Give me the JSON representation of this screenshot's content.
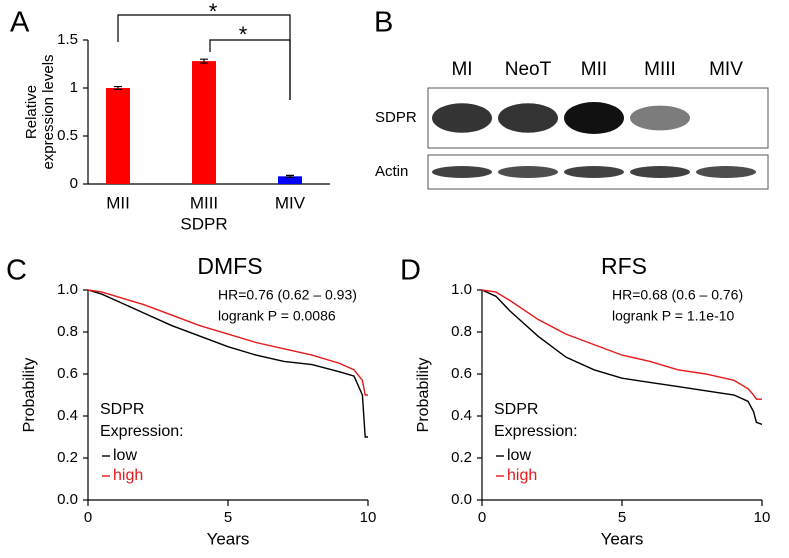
{
  "chart_data": [
    {
      "type": "bar",
      "panel": "A",
      "categories": [
        "MII",
        "MIII",
        "MIV"
      ],
      "xlabel": "SDPR",
      "ylabel": [
        "Relative",
        "expression levels"
      ],
      "values": [
        1.0,
        1.28,
        0.08
      ],
      "errors": [
        0.015,
        0.02,
        0.01
      ],
      "colors": [
        "#ff0000",
        "#ff0000",
        "#0000ff"
      ],
      "ylim": [
        0,
        1.5
      ],
      "yticks": [
        0,
        0.5,
        1,
        1.5
      ],
      "annotations": [
        "*",
        "*"
      ]
    },
    {
      "type": "blot",
      "panel": "B",
      "categories": [
        "MI",
        "NeoT",
        "MII",
        "MIII",
        "MIV"
      ],
      "rows": [
        {
          "name": "SDPR",
          "values": [
            0.85,
            0.85,
            1,
            0.55,
            0
          ]
        },
        {
          "name": "Actin",
          "values": [
            0.8,
            0.75,
            0.8,
            0.8,
            0.75
          ]
        }
      ]
    },
    {
      "type": "km",
      "panel": "C",
      "title": "DMFS",
      "xlabel": "Years",
      "ylabel": "Probability",
      "annotations": [
        "HR=0.76 (0.62 – 0.93)",
        "logrank P = 0.0086"
      ],
      "legend_title": [
        "SDPR",
        "Expression:"
      ],
      "x": [
        0,
        0.5,
        1,
        2,
        3,
        4,
        5,
        6,
        7,
        8,
        9,
        9.5,
        9.8,
        9.9,
        10
      ],
      "series": [
        {
          "name": "low",
          "color": "#000000",
          "values": [
            1,
            0.98,
            0.95,
            0.89,
            0.83,
            0.78,
            0.73,
            0.69,
            0.66,
            0.645,
            0.61,
            0.59,
            0.5,
            0.3,
            0.3
          ]
        },
        {
          "name": "high",
          "color": "#e41a1c",
          "values": [
            1,
            0.99,
            0.97,
            0.93,
            0.88,
            0.83,
            0.79,
            0.75,
            0.72,
            0.69,
            0.65,
            0.62,
            0.57,
            0.5,
            0.5
          ]
        }
      ],
      "xlim": [
        0,
        10
      ],
      "xticks": [
        0,
        5,
        10
      ],
      "ylim": [
        0,
        1
      ],
      "yticks": [
        {
          "value": 0,
          "label": "0.0"
        },
        {
          "value": 0.2,
          "label": "0.2"
        },
        {
          "value": 0.4,
          "label": "0.4"
        },
        {
          "value": 0.6,
          "label": "0.6"
        },
        {
          "value": 0.8,
          "label": "0.8"
        },
        {
          "value": 1,
          "label": "1.0"
        }
      ]
    },
    {
      "type": "km",
      "panel": "D",
      "title": "RFS",
      "xlabel": "Years",
      "ylabel": "Probability",
      "annotations": [
        "HR=0.68 (0.6 – 0.76)",
        "logrank P = 1.1e-10"
      ],
      "legend_title": [
        "SDPR",
        "Expression:"
      ],
      "x": [
        0,
        0.5,
        1,
        2,
        3,
        4,
        5,
        6,
        7,
        8,
        9,
        9.5,
        9.7,
        9.8,
        10
      ],
      "series": [
        {
          "name": "low",
          "color": "#000000",
          "values": [
            1,
            0.97,
            0.9,
            0.78,
            0.68,
            0.62,
            0.58,
            0.56,
            0.54,
            0.52,
            0.5,
            0.47,
            0.42,
            0.37,
            0.36
          ]
        },
        {
          "name": "high",
          "color": "#e41a1c",
          "values": [
            1,
            0.99,
            0.95,
            0.86,
            0.79,
            0.74,
            0.69,
            0.66,
            0.62,
            0.6,
            0.57,
            0.53,
            0.5,
            0.48,
            0.48
          ]
        }
      ],
      "xlim": [
        0,
        10
      ],
      "xticks": [
        0,
        5,
        10
      ],
      "ylim": [
        0,
        1
      ],
      "yticks": [
        {
          "value": 0,
          "label": "0.0"
        },
        {
          "value": 0.2,
          "label": "0.2"
        },
        {
          "value": 0.4,
          "label": "0.4"
        },
        {
          "value": 0.6,
          "label": "0.6"
        },
        {
          "value": 0.8,
          "label": "0.8"
        },
        {
          "value": 1,
          "label": "1.0"
        }
      ]
    }
  ]
}
